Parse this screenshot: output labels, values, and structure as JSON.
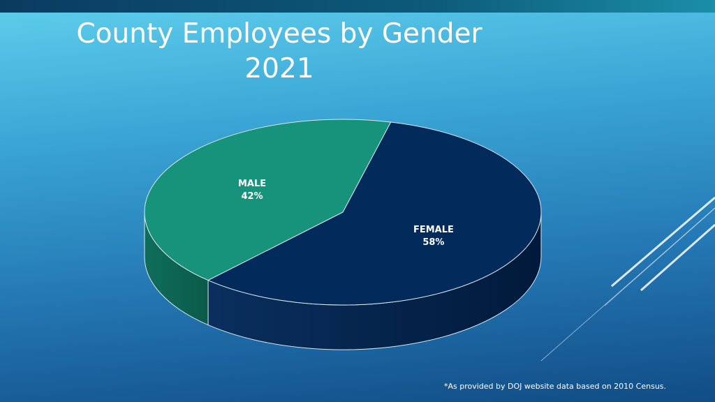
{
  "slide": {
    "title_line1": "County Employees by Gender",
    "title_line2": "2021",
    "footnote": "*As provided by DOJ website data based on 2010 Census."
  },
  "colors": {
    "male": "#16937a",
    "male_side": "#0f6e5b",
    "female": "#022a5a",
    "female_side": "#011a3b",
    "outline": "#d8e6ee"
  },
  "chart_data": {
    "type": "pie",
    "title": "County Employees by Gender 2021",
    "three_d": true,
    "slices": [
      {
        "label": "FEMALE",
        "value": 58,
        "value_label": "58%"
      },
      {
        "label": "MALE",
        "value": 42,
        "value_label": "42%"
      }
    ]
  }
}
